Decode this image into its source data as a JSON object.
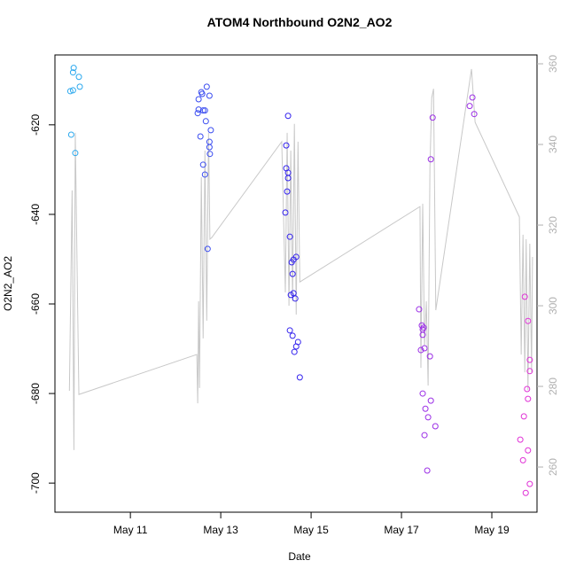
{
  "chart_data": {
    "type": "scatter",
    "title": "ATOM4 Northbound O2N2_AO2",
    "x_label": "Date",
    "y_label": "O2N2_AO2",
    "xlim": [
      9.33,
      20.0
    ],
    "xticks": [
      {
        "value": 11,
        "label": "May 11"
      },
      {
        "value": 13,
        "label": "May 13"
      },
      {
        "value": 15,
        "label": "May 15"
      },
      {
        "value": 17,
        "label": "May 17"
      },
      {
        "value": 19,
        "label": "May 19"
      }
    ],
    "ylim": [
      -706.5,
      -604.4
    ],
    "yticks": [
      -700,
      -680,
      -660,
      -640,
      -620
    ],
    "y2lim": [
      248.8,
      362.2
    ],
    "y2ticks": [
      260,
      280,
      300,
      320,
      340,
      360
    ],
    "series": [
      {
        "color": "#2aa8ee",
        "x": [
          9.745,
          9.73,
          9.86,
          9.88,
          9.67,
          9.73,
          9.69,
          9.78
        ],
        "values": [
          -607.3,
          -608.3,
          -609.3,
          -611.5,
          -612.5,
          -612.3,
          -622.2,
          -626.3
        ]
      },
      {
        "color": "#3a4cf0",
        "x": [
          12.69,
          12.57,
          12.75,
          12.51,
          12.59,
          12.51,
          12.61,
          12.65,
          12.49,
          12.67,
          12.78,
          12.55,
          12.75,
          12.75,
          12.76,
          12.61,
          12.65,
          12.71
        ],
        "values": [
          -611.5,
          -612.7,
          -613.5,
          -614.3,
          -613.1,
          -616.6,
          -616.8,
          -616.8,
          -617.4,
          -619.2,
          -621.2,
          -622.6,
          -623.8,
          -625.0,
          -626.5,
          -628.9,
          -631.1,
          -647.7
        ]
      },
      {
        "color": "#3322ee",
        "x": [
          14.49,
          14.45,
          14.45,
          14.49,
          14.49,
          14.47,
          14.43,
          14.53,
          14.67,
          14.61,
          14.57,
          14.59,
          14.55,
          14.61,
          14.65,
          14.53,
          14.59,
          14.71,
          14.67,
          14.63,
          14.75
        ],
        "values": [
          -618.0,
          -624.6,
          -629.7,
          -630.7,
          -631.9,
          -634.9,
          -639.6,
          -645.0,
          -649.5,
          -650.1,
          -650.7,
          -653.3,
          -658.0,
          -657.6,
          -658.8,
          -665.9,
          -667.1,
          -668.5,
          -669.5,
          -670.7,
          -676.4
        ]
      },
      {
        "color": "#9b2ee6",
        "x": [
          17.39,
          17.45,
          17.47,
          17.47,
          17.49,
          17.43,
          17.51,
          17.63,
          17.69,
          17.65,
          17.47,
          17.53,
          17.59,
          17.65,
          17.75,
          17.51,
          17.57,
          18.57,
          18.51,
          18.61
        ],
        "values": [
          -661.2,
          -664.8,
          -665.7,
          -666.9,
          -665.3,
          -670.3,
          -669.9,
          -671.7,
          -618.4,
          -627.7,
          -680.0,
          -683.4,
          -685.3,
          -681.6,
          -687.3,
          -689.3,
          -697.2,
          -613.9,
          -615.8,
          -617.6
        ]
      },
      {
        "color": "#e032d6",
        "x": [
          19.73,
          19.8,
          19.84,
          19.84,
          19.78,
          19.8,
          19.71,
          19.63,
          19.8,
          19.69,
          19.84,
          19.75
        ],
        "values": [
          -658.4,
          -663.8,
          -672.5,
          -675.0,
          -679.0,
          -681.2,
          -685.1,
          -690.3,
          -692.7,
          -694.9,
          -700.2,
          -702.2
        ]
      },
      {
        "type": "line",
        "axis": "y2",
        "color": "#c8c8c8",
        "x": [
          9.65,
          9.71,
          9.75,
          9.78,
          9.82,
          9.86,
          12.47,
          12.49,
          12.51,
          12.53,
          12.57,
          12.61,
          12.65,
          12.69,
          12.73,
          12.76,
          12.8,
          14.35,
          14.43,
          14.47,
          14.51,
          14.55,
          14.59,
          14.63,
          14.67,
          14.71,
          14.75,
          17.41,
          17.43,
          17.47,
          17.51,
          17.55,
          17.59,
          17.63,
          17.67,
          17.71,
          17.76,
          18.55,
          18.63,
          19.61,
          19.65,
          19.69,
          19.73,
          19.76,
          19.8,
          19.84,
          19.88,
          19.9
        ],
        "values": [
          278.9,
          328.6,
          264.2,
          342.9,
          309.9,
          278.0,
          287.9,
          275.8,
          301.1,
          279.6,
          331.9,
          291.9,
          338.5,
          296.3,
          342.9,
          316.5,
          316.9,
          340.7,
          303.3,
          342.9,
          300.0,
          338.5,
          301.1,
          345.1,
          297.8,
          340.7,
          305.9,
          324.6,
          284.6,
          325.3,
          290.1,
          301.1,
          280.2,
          334.1,
          351.6,
          353.8,
          298.9,
          358.7,
          345.5,
          322.0,
          287.9,
          317.6,
          283.5,
          316.5,
          279.1,
          315.4,
          283.5,
          312.1
        ]
      }
    ]
  }
}
